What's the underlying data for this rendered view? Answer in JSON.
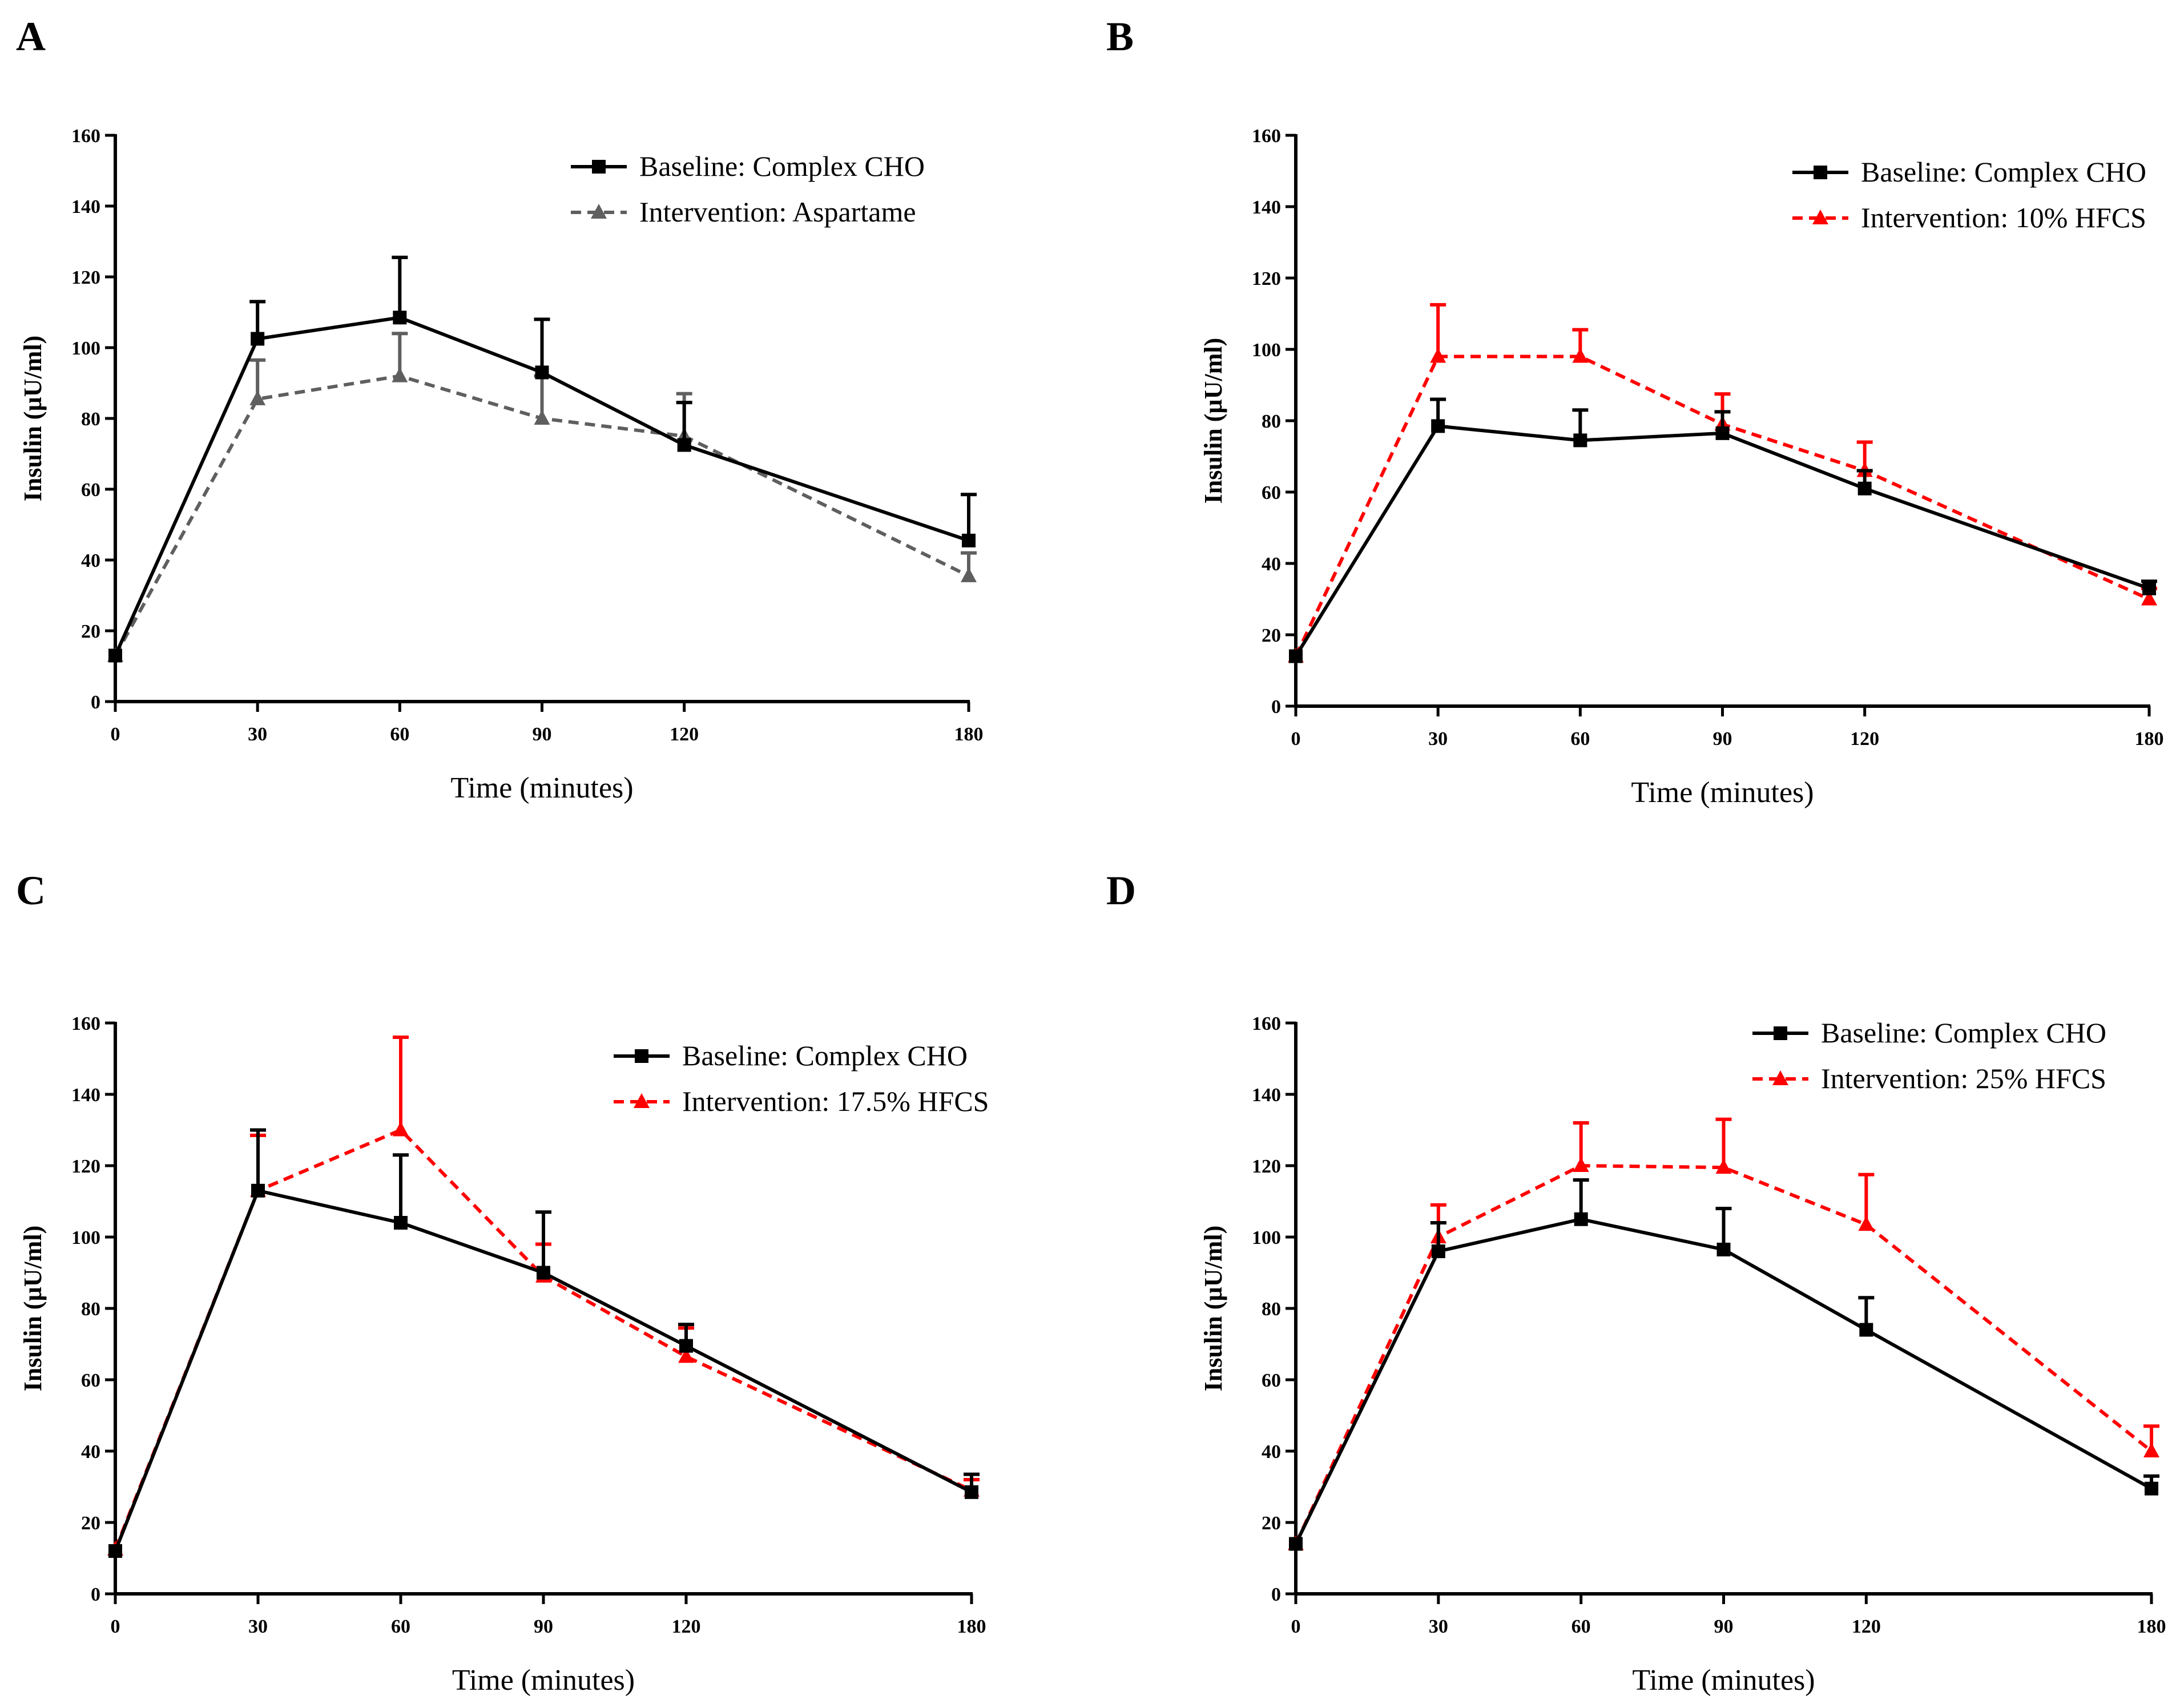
{
  "panels": [
    {
      "letter": "A",
      "chart_data": {
        "type": "line",
        "title": "",
        "xlabel": "Time (minutes)",
        "ylabel": "Insulin (µU/ml)",
        "xlim": [
          0,
          180
        ],
        "ylim": [
          0,
          160
        ],
        "x_ticks": [
          0,
          30,
          60,
          90,
          120,
          180
        ],
        "y_ticks": [
          0,
          20,
          40,
          60,
          80,
          100,
          120,
          140,
          160
        ],
        "legend_position": "top-right",
        "series": [
          {
            "name": "Baseline: Complex CHO",
            "color": "#000000",
            "marker": "square",
            "dashed": false,
            "x": [
              0,
              30,
              60,
              90,
              120,
              180
            ],
            "values": [
              13,
              102.5,
              108.5,
              93,
              72.5,
              45.5
            ],
            "errors": [
              0,
              10.5,
              17,
              15,
              12,
              13
            ]
          },
          {
            "name": "Intervention: Aspartame",
            "color": "#5f5f5f",
            "marker": "triangle",
            "dashed": true,
            "x": [
              0,
              30,
              60,
              90,
              120,
              180
            ],
            "values": [
              13,
              85.5,
              92,
              80,
              75,
              35.5
            ],
            "errors": [
              0,
              11,
              12,
              12,
              12,
              6.5
            ]
          }
        ]
      }
    },
    {
      "letter": "B",
      "chart_data": {
        "type": "line",
        "title": "",
        "xlabel": "Time (minutes)",
        "ylabel": "Insulin (µU/ml)",
        "xlim": [
          0,
          180
        ],
        "ylim": [
          0,
          160
        ],
        "x_ticks": [
          0,
          30,
          60,
          90,
          120,
          180
        ],
        "y_ticks": [
          0,
          20,
          40,
          60,
          80,
          100,
          120,
          140,
          160
        ],
        "legend_position": "top-right",
        "series": [
          {
            "name": "Baseline: Complex CHO",
            "color": "#000000",
            "marker": "square",
            "dashed": false,
            "x": [
              0,
              30,
              60,
              90,
              120,
              180
            ],
            "values": [
              14,
              78.5,
              74.5,
              76.5,
              61,
              33
            ],
            "errors": [
              0,
              7.5,
              8.5,
              6,
              5,
              2
            ]
          },
          {
            "name": "Intervention: 10% HFCS",
            "color": "#ff0000",
            "marker": "triangle",
            "dashed": true,
            "x": [
              0,
              30,
              60,
              90,
              120,
              180
            ],
            "values": [
              14,
              98,
              98,
              79,
              66,
              30
            ],
            "errors": [
              0,
              14.5,
              7.5,
              8.5,
              8,
              3
            ]
          }
        ]
      }
    },
    {
      "letter": "C",
      "chart_data": {
        "type": "line",
        "title": "",
        "xlabel": "Time (minutes)",
        "ylabel": "Insulin (µU/ml)",
        "xlim": [
          0,
          180
        ],
        "ylim": [
          0,
          160
        ],
        "x_ticks": [
          0,
          30,
          60,
          90,
          120,
          180
        ],
        "y_ticks": [
          0,
          20,
          40,
          60,
          80,
          100,
          120,
          140,
          160
        ],
        "legend_position": "top-right",
        "series": [
          {
            "name": "Baseline: Complex CHO",
            "color": "#000000",
            "marker": "square",
            "dashed": false,
            "x": [
              0,
              30,
              60,
              90,
              120,
              180
            ],
            "values": [
              12,
              113,
              104,
              90,
              69.5,
              28.5
            ],
            "errors": [
              0,
              17,
              19,
              17,
              6,
              5
            ]
          },
          {
            "name": "Intervention: 17.5% HFCS",
            "color": "#ff0000",
            "marker": "triangle",
            "dashed": true,
            "x": [
              0,
              30,
              60,
              90,
              120,
              180
            ],
            "values": [
              12.5,
              113,
              130,
              89,
              66.5,
              29
            ],
            "errors": [
              0,
              15.5,
              26,
              9,
              8,
              3
            ]
          }
        ]
      }
    },
    {
      "letter": "D",
      "chart_data": {
        "type": "line",
        "title": "",
        "xlabel": "Time (minutes)",
        "ylabel": "Insulin (µU/ml)",
        "xlim": [
          0,
          180
        ],
        "ylim": [
          0,
          160
        ],
        "x_ticks": [
          0,
          30,
          60,
          90,
          120,
          180
        ],
        "y_ticks": [
          0,
          20,
          40,
          60,
          80,
          100,
          120,
          140,
          160
        ],
        "legend_position": "top-right",
        "series": [
          {
            "name": "Baseline: Complex CHO",
            "color": "#000000",
            "marker": "square",
            "dashed": false,
            "x": [
              0,
              30,
              60,
              90,
              120,
              180
            ],
            "values": [
              14,
              96,
              105,
              96.5,
              74,
              29.5
            ],
            "errors": [
              0,
              8,
              11,
              11.5,
              9,
              3.5
            ]
          },
          {
            "name": "Intervention: 25% HFCS",
            "color": "#ff0000",
            "marker": "triangle",
            "dashed": true,
            "x": [
              0,
              30,
              60,
              90,
              120,
              180
            ],
            "values": [
              14,
              100,
              120,
              119.5,
              103.5,
              40
            ],
            "errors": [
              0,
              9,
              12,
              13.5,
              14,
              7
            ]
          }
        ]
      }
    }
  ]
}
